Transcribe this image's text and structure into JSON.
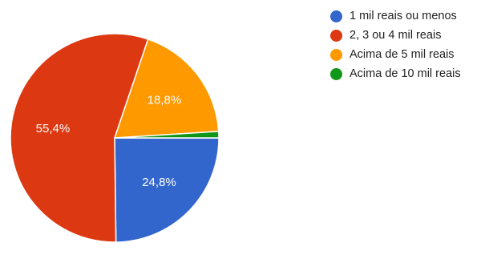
{
  "chart_data": {
    "type": "pie",
    "title": "",
    "legend_position": "right",
    "slices": [
      {
        "label": "1 mil reais ou menos",
        "value": 24.8,
        "value_label": "24,8%",
        "color": "#3366cc"
      },
      {
        "label": "2, 3 ou 4 mil reais",
        "value": 55.4,
        "value_label": "55,4%",
        "color": "#dc3912"
      },
      {
        "label": "Acima de 5 mil reais",
        "value": 18.8,
        "value_label": "18,8%",
        "color": "#ff9900"
      },
      {
        "label": "Acima de 10 mil reais",
        "value": 1.0,
        "value_label": "",
        "color": "#109618"
      }
    ]
  }
}
